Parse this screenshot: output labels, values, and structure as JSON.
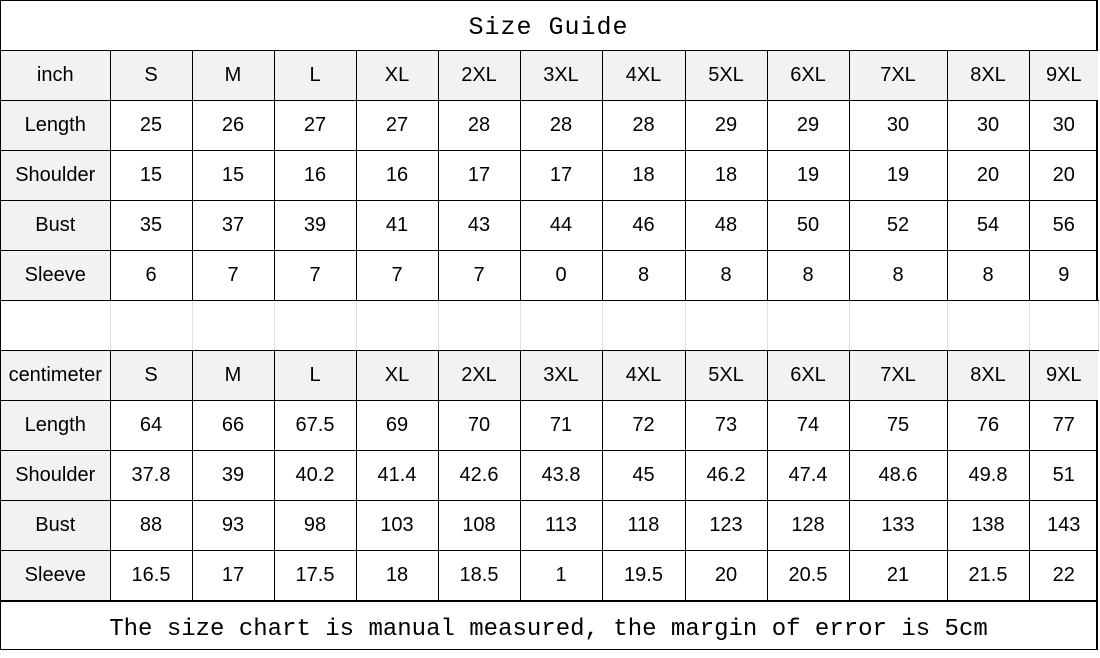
{
  "title": "Size Guide",
  "sizes": [
    "S",
    "M",
    "L",
    "XL",
    "2XL",
    "3XL",
    "4XL",
    "5XL",
    "6XL",
    "7XL",
    "8XL",
    "9XL"
  ],
  "inch": {
    "unit": "inch",
    "rows": [
      {
        "label": "Length",
        "values": [
          "25",
          "26",
          "27",
          "27",
          "28",
          "28",
          "28",
          "29",
          "29",
          "30",
          "30",
          "30"
        ]
      },
      {
        "label": "Shoulder",
        "values": [
          "15",
          "15",
          "16",
          "16",
          "17",
          "17",
          "18",
          "18",
          "19",
          "19",
          "20",
          "20"
        ]
      },
      {
        "label": "Bust",
        "values": [
          "35",
          "37",
          "39",
          "41",
          "43",
          "44",
          "46",
          "48",
          "50",
          "52",
          "54",
          "56"
        ]
      },
      {
        "label": "Sleeve",
        "values": [
          "6",
          "7",
          "7",
          "7",
          "7",
          "0",
          "8",
          "8",
          "8",
          "8",
          "8",
          "9"
        ]
      }
    ]
  },
  "cm": {
    "unit": "centimeter",
    "rows": [
      {
        "label": "Length",
        "values": [
          "64",
          "66",
          "67.5",
          "69",
          "70",
          "71",
          "72",
          "73",
          "74",
          "75",
          "76",
          "77"
        ]
      },
      {
        "label": "Shoulder",
        "values": [
          "37.8",
          "39",
          "40.2",
          "41.4",
          "42.6",
          "43.8",
          "45",
          "46.2",
          "47.4",
          "48.6",
          "49.8",
          "51"
        ]
      },
      {
        "label": "Bust",
        "values": [
          "88",
          "93",
          "98",
          "103",
          "108",
          "113",
          "118",
          "123",
          "128",
          "133",
          "138",
          "143"
        ]
      },
      {
        "label": "Sleeve",
        "values": [
          "16.5",
          "17",
          "17.5",
          "18",
          "18.5",
          "1",
          "19.5",
          "20",
          "20.5",
          "21",
          "21.5",
          "22"
        ]
      }
    ]
  },
  "footer": "The size chart is manual measured, the margin of error is 5cm"
}
